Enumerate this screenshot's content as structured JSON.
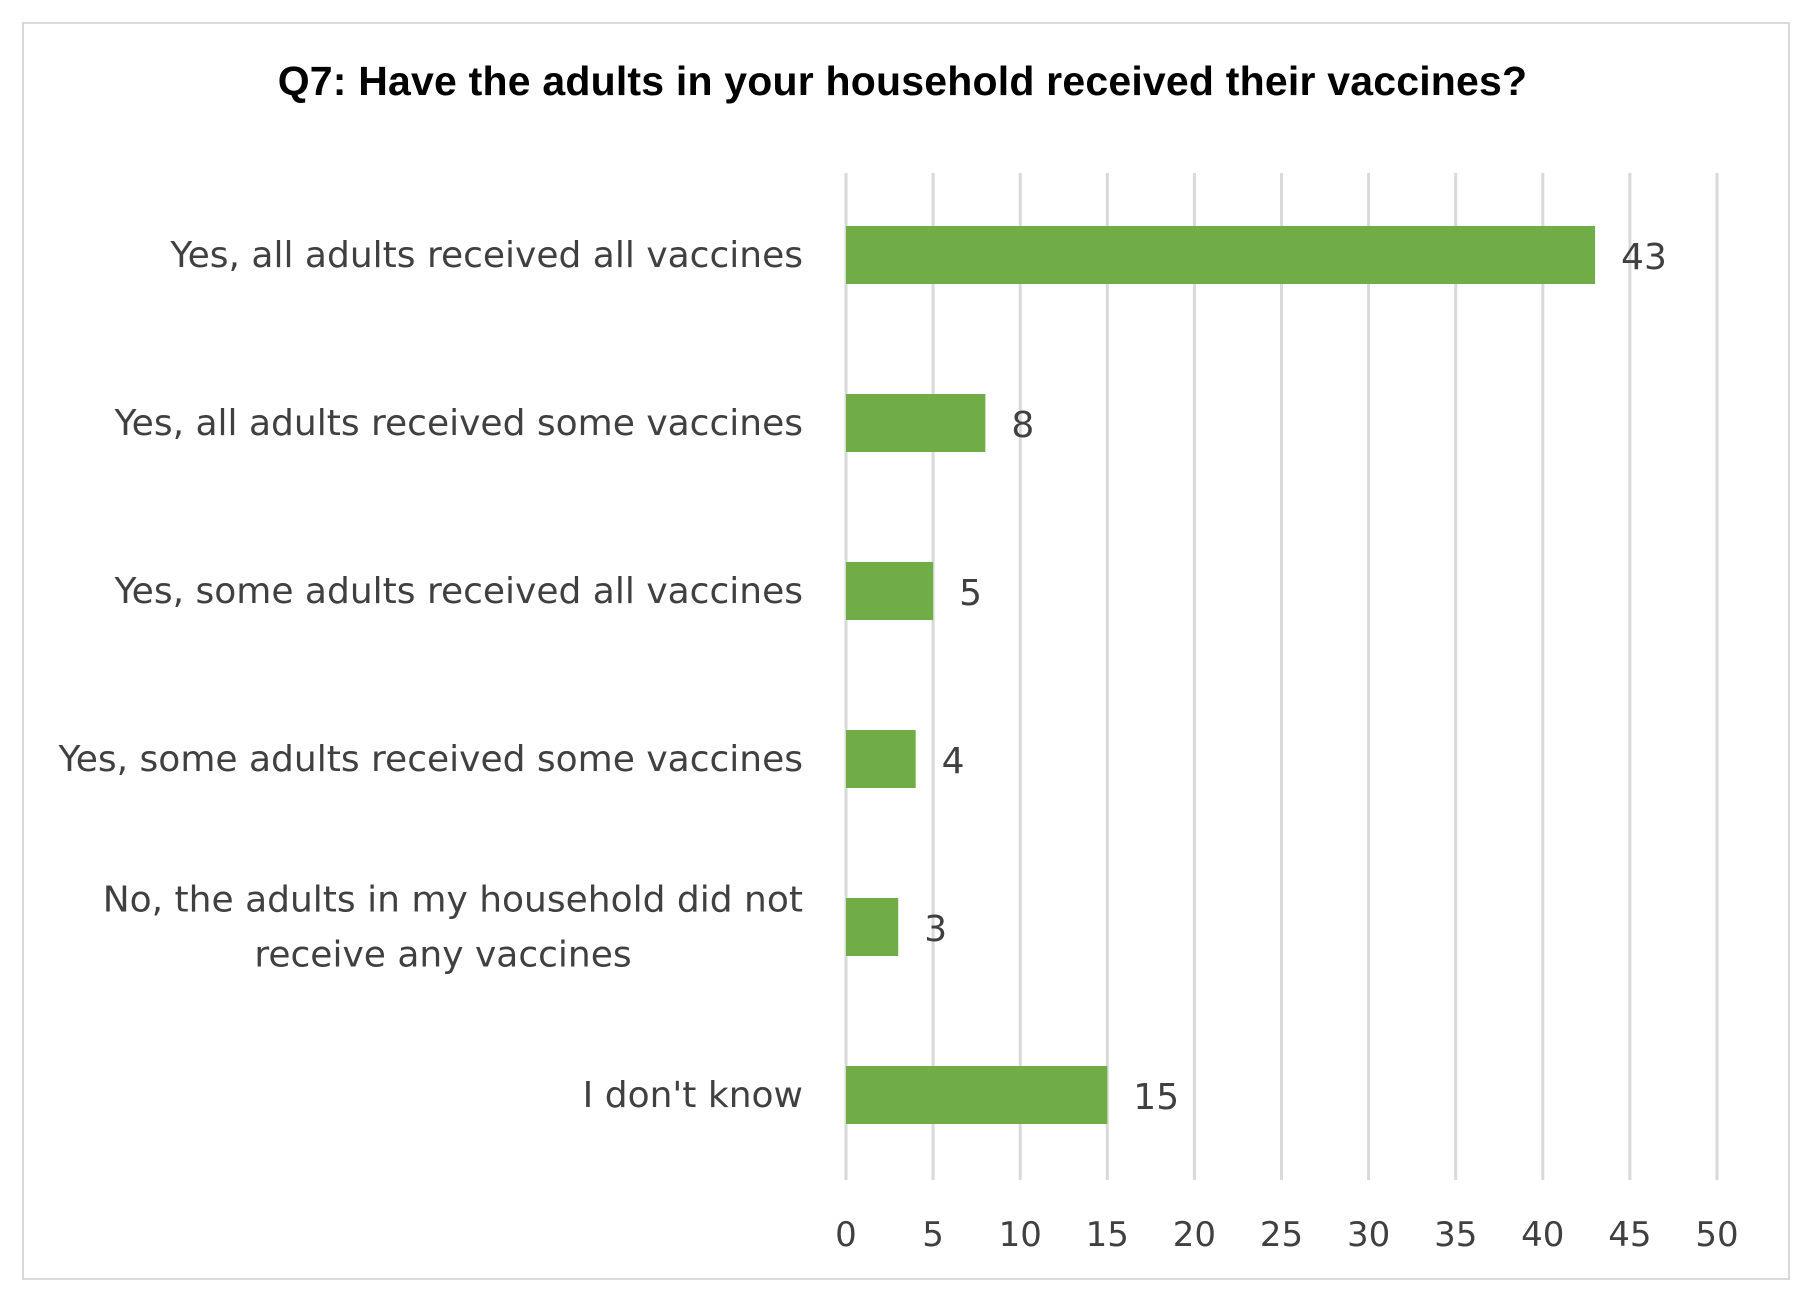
{
  "chart_data": {
    "type": "bar",
    "orientation": "horizontal",
    "title": "Q7: Have the adults in your household received their vaccines?",
    "categories": [
      "Yes, all adults received all vaccines",
      "Yes, all adults received some vaccines",
      "Yes, some adults received all vaccines",
      "Yes, some adults received some vaccines",
      "No, the adults in my household did not receive any vaccines",
      "I don't know"
    ],
    "category_lines": [
      [
        "Yes, all adults received all vaccines"
      ],
      [
        "Yes, all adults received some vaccines"
      ],
      [
        "Yes, some adults received all vaccines"
      ],
      [
        "Yes, some adults received some vaccines"
      ],
      [
        "No, the adults in my household did not",
        "receive any vaccines"
      ],
      [
        "I don't know"
      ]
    ],
    "values": [
      43,
      8,
      5,
      4,
      3,
      15
    ],
    "data_labels": [
      "43",
      "8",
      "5",
      "4",
      "3",
      "15"
    ],
    "xlabel": "",
    "ylabel": "",
    "xlim": [
      0,
      50
    ],
    "ticks": [
      0,
      5,
      10,
      15,
      20,
      25,
      30,
      35,
      40,
      45,
      50
    ],
    "tick_labels": [
      "0",
      "5",
      "10",
      "15",
      "20",
      "25",
      "30",
      "35",
      "40",
      "45",
      "50"
    ],
    "grid": true,
    "legend": "none",
    "bar_color": "#70ad47",
    "grid_color": "#d9d9d9",
    "label_color": "#404040"
  }
}
